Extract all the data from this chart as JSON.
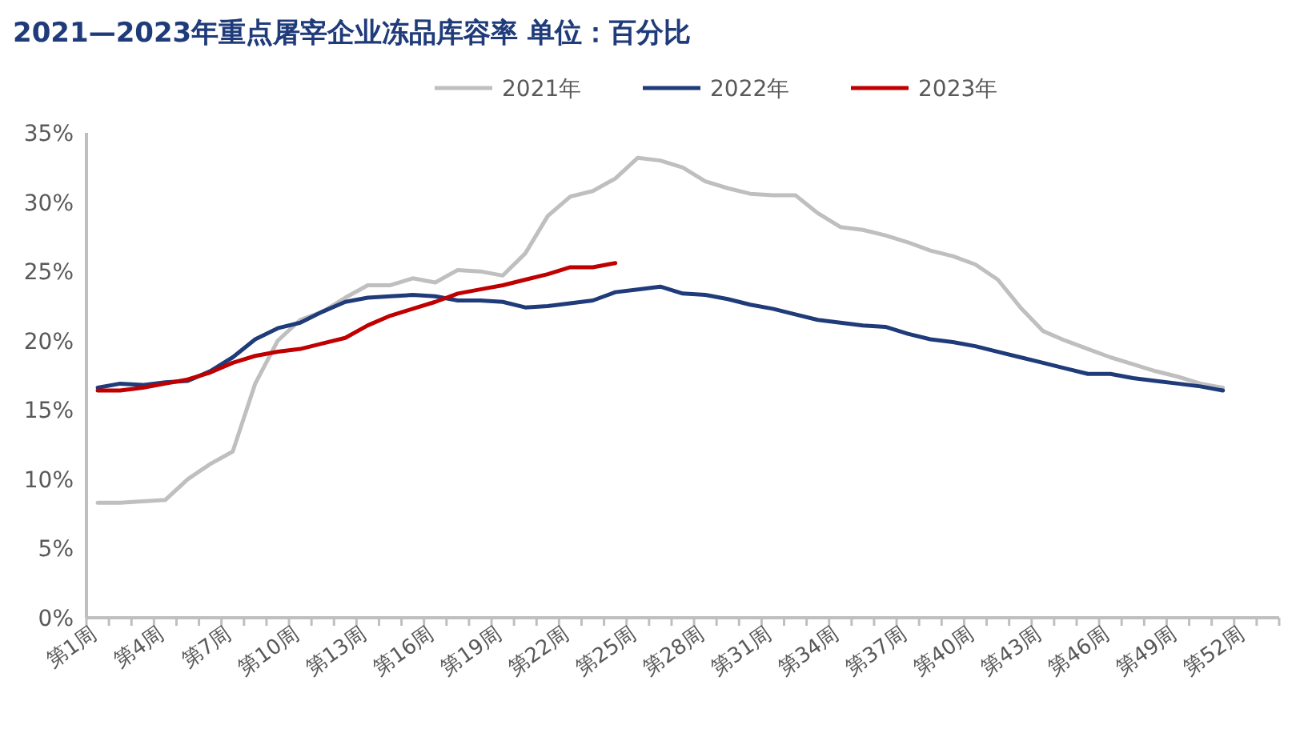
{
  "chart_data": {
    "type": "line",
    "title": "2021—2023年重点屠宰企业冻品库容率  单位：百分比",
    "categories": [
      "第1周",
      null,
      null,
      "第4周",
      null,
      null,
      "第7周",
      null,
      null,
      "第10周",
      null,
      null,
      "第13周",
      null,
      null,
      "第16周",
      null,
      null,
      "第19周",
      null,
      null,
      "第22周",
      null,
      null,
      "第25周",
      null,
      null,
      "第28周",
      null,
      null,
      "第31周",
      null,
      null,
      "第34周",
      null,
      null,
      "第37周",
      null,
      null,
      "第40周",
      null,
      null,
      "第43周",
      null,
      null,
      "第46周",
      null,
      null,
      "第49周",
      null,
      null,
      "第52周",
      null
    ],
    "series": [
      {
        "name": "2021年",
        "color": "#bfbfbf",
        "values": [
          8.3,
          8.3,
          8.4,
          8.5,
          10.0,
          11.1,
          12.0,
          16.9,
          20.0,
          21.5,
          22.1,
          23.1,
          24.0,
          24.0,
          24.5,
          24.2,
          25.1,
          25.0,
          24.7,
          26.3,
          29.0,
          30.4,
          30.8,
          31.7,
          33.2,
          33.0,
          32.5,
          31.5,
          31.0,
          30.6,
          30.5,
          30.5,
          29.2,
          28.2,
          28.0,
          27.6,
          27.1,
          26.5,
          26.1,
          25.5,
          24.4,
          22.4,
          20.7,
          20.0,
          19.4,
          18.8,
          18.3,
          17.8,
          17.4,
          16.9,
          16.6,
          null,
          null
        ]
      },
      {
        "name": "2022年",
        "color": "#1f3b7a",
        "values": [
          16.6,
          16.9,
          16.8,
          17.0,
          17.1,
          17.8,
          18.8,
          20.1,
          20.9,
          21.3,
          22.1,
          22.8,
          23.1,
          23.2,
          23.3,
          23.2,
          22.9,
          22.9,
          22.8,
          22.4,
          22.5,
          22.7,
          22.9,
          23.5,
          23.7,
          23.9,
          23.4,
          23.3,
          23.0,
          22.6,
          22.3,
          21.9,
          21.5,
          21.3,
          21.1,
          21.0,
          20.5,
          20.1,
          19.9,
          19.6,
          19.2,
          18.8,
          18.4,
          18.0,
          17.6,
          17.6,
          17.3,
          17.1,
          16.9,
          16.7,
          16.4,
          null,
          null
        ]
      },
      {
        "name": "2023年",
        "color": "#c00000",
        "values": [
          16.4,
          16.4,
          16.6,
          16.9,
          17.2,
          17.7,
          18.4,
          18.9,
          19.2,
          19.4,
          19.8,
          20.2,
          21.1,
          21.8,
          22.3,
          22.8,
          23.4,
          23.7,
          24.0,
          24.4,
          24.8,
          25.3,
          25.3,
          25.6,
          null,
          null,
          null,
          null,
          null,
          null,
          null,
          null,
          null,
          null,
          null,
          null,
          null,
          null,
          null,
          null,
          null,
          null,
          null,
          null,
          null,
          null,
          null,
          null,
          null,
          null,
          null,
          null,
          null
        ]
      }
    ],
    "ylim": [
      0,
      35
    ],
    "yticks": [
      {
        "value": 0,
        "label": "0%"
      },
      {
        "value": 5,
        "label": "5%"
      },
      {
        "value": 10,
        "label": "10%"
      },
      {
        "value": 15,
        "label": "15%"
      },
      {
        "value": 20,
        "label": "20%"
      },
      {
        "value": 25,
        "label": "25%"
      },
      {
        "value": 30,
        "label": "30%"
      },
      {
        "value": 35,
        "label": "35%"
      }
    ],
    "legend": "top",
    "grid": false,
    "marker": "none",
    "line_style": "solid"
  }
}
